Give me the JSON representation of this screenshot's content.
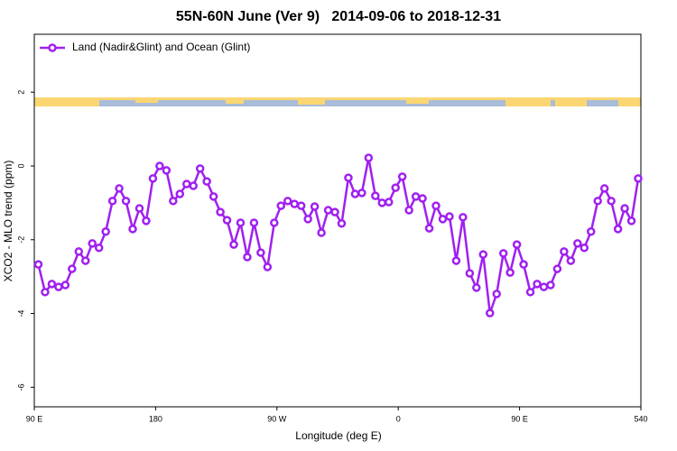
{
  "chart_data": {
    "type": "line",
    "title": "55N-60N June (Ver 9)   2014-09-06 to 2018-12-31",
    "x_label": "Longitude (deg E)",
    "y_label": "XCO2 - MLO trend (ppm)",
    "xlim": [
      90,
      540
    ],
    "ylim": [
      -6.53,
      3.57
    ],
    "xticks": [
      {
        "value": 90,
        "label": "90 E"
      },
      180,
      {
        "value": 270,
        "label": "90 W"
      },
      {
        "value": 360,
        "label": "0"
      },
      {
        "value": 450,
        "label": "90 E"
      },
      540
    ],
    "yticks": [
      2,
      0,
      -2,
      -4,
      -6
    ],
    "legend_position": "top-left",
    "x": [
      93,
      98,
      103,
      108,
      113,
      118,
      123,
      128,
      133,
      138,
      143,
      148,
      153,
      158,
      163,
      168,
      173,
      178,
      183,
      188,
      193,
      198,
      203,
      208,
      213,
      218,
      223,
      228,
      233,
      238,
      243,
      248,
      253,
      258,
      263,
      268,
      273,
      278,
      283,
      288,
      293,
      298,
      303,
      308,
      313,
      318,
      323,
      328,
      333,
      338,
      343,
      348,
      353,
      358,
      363,
      368,
      373,
      378,
      383,
      388,
      393,
      398,
      403,
      408,
      413,
      418,
      423,
      428,
      433,
      438,
      443,
      448,
      453,
      458,
      463,
      468,
      473,
      478,
      483,
      488,
      493,
      498,
      503,
      508,
      513,
      518,
      523,
      528,
      533,
      538
    ],
    "series": [
      {
        "name": "Land (Nadir&Glint) and Ocean (Glint)",
        "color": "#a020f0",
        "values": [
          -2.67,
          -3.42,
          -3.2,
          -3.28,
          -3.23,
          -2.79,
          -2.32,
          -2.57,
          -2.1,
          -2.22,
          -1.78,
          -0.95,
          -0.61,
          -0.95,
          -1.71,
          -1.15,
          -1.49,
          -0.34,
          0.0,
          -0.12,
          -0.95,
          -0.76,
          -0.49,
          -0.54,
          -0.07,
          -0.42,
          -0.83,
          -1.25,
          -1.47,
          -2.13,
          -1.54,
          -2.47,
          -1.54,
          -2.35,
          -2.74,
          -1.54,
          -1.08,
          -0.95,
          -1.03,
          -1.08,
          -1.44,
          -1.1,
          -1.81,
          -1.2,
          -1.25,
          -1.56,
          -0.32,
          -0.76,
          -0.73,
          0.22,
          -0.81,
          -1.0,
          -0.98,
          -0.59,
          -0.29,
          -1.2,
          -0.83,
          -0.88,
          -1.69,
          -1.08,
          -1.44,
          -1.37,
          -2.57,
          -1.39,
          -2.91,
          -3.3,
          -2.4,
          -3.99,
          -3.47,
          -2.37,
          -2.89,
          -2.13,
          -2.67,
          -3.42,
          -3.2,
          -3.28,
          -3.23,
          -2.79,
          -2.32,
          -2.57,
          -2.1,
          -2.22,
          -1.78,
          -0.95,
          -0.61,
          -0.95,
          -1.71,
          -1.15,
          -1.49,
          -0.34
        ]
      }
    ]
  }
}
